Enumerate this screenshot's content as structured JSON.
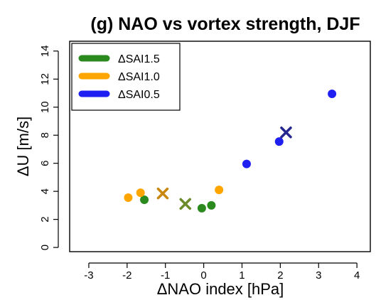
{
  "chart_data": {
    "type": "scatter",
    "title": "(g) NAO vs vortex strength, DJF",
    "xlabel": "ΔNAO index [hPa]",
    "ylabel": "ΔU [m/s]",
    "xlim": [
      -3.5,
      4.35
    ],
    "ylim": [
      -0.3,
      14.7
    ],
    "xticks": [
      -3,
      -2,
      -1,
      0,
      1,
      2,
      3,
      4
    ],
    "yticks": [
      0,
      2,
      4,
      6,
      8,
      10,
      12,
      14
    ],
    "xtick_labels": [
      "-3",
      "-2",
      "-1",
      "0",
      "1",
      "2",
      "3",
      "4"
    ],
    "ytick_labels": [
      "0",
      "2",
      "4",
      "6",
      "8",
      "10",
      "12",
      "14"
    ],
    "grid": false,
    "legend_position": "top-left",
    "series": [
      {
        "name": "ΔSAI1.5",
        "color": "#2a8a1e",
        "points": [
          [
            -1.55,
            3.4
          ],
          [
            -0.05,
            2.8
          ],
          [
            0.2,
            3.0
          ]
        ],
        "mean": [
          -0.48,
          3.1
        ],
        "mean_color": "#6b8a2a"
      },
      {
        "name": "ΔSAI1.0",
        "color": "#ffa500",
        "points": [
          [
            -1.97,
            3.55
          ],
          [
            -1.65,
            3.9
          ],
          [
            0.4,
            4.1
          ]
        ],
        "mean": [
          -1.07,
          3.85
        ],
        "mean_color": "#c8870f"
      },
      {
        "name": "ΔSAI0.5",
        "color": "#1f1ff2",
        "points": [
          [
            1.12,
            5.95
          ],
          [
            1.97,
            7.55
          ],
          [
            3.35,
            10.95
          ]
        ],
        "mean": [
          2.15,
          8.2
        ],
        "mean_color": "#262690"
      }
    ]
  }
}
